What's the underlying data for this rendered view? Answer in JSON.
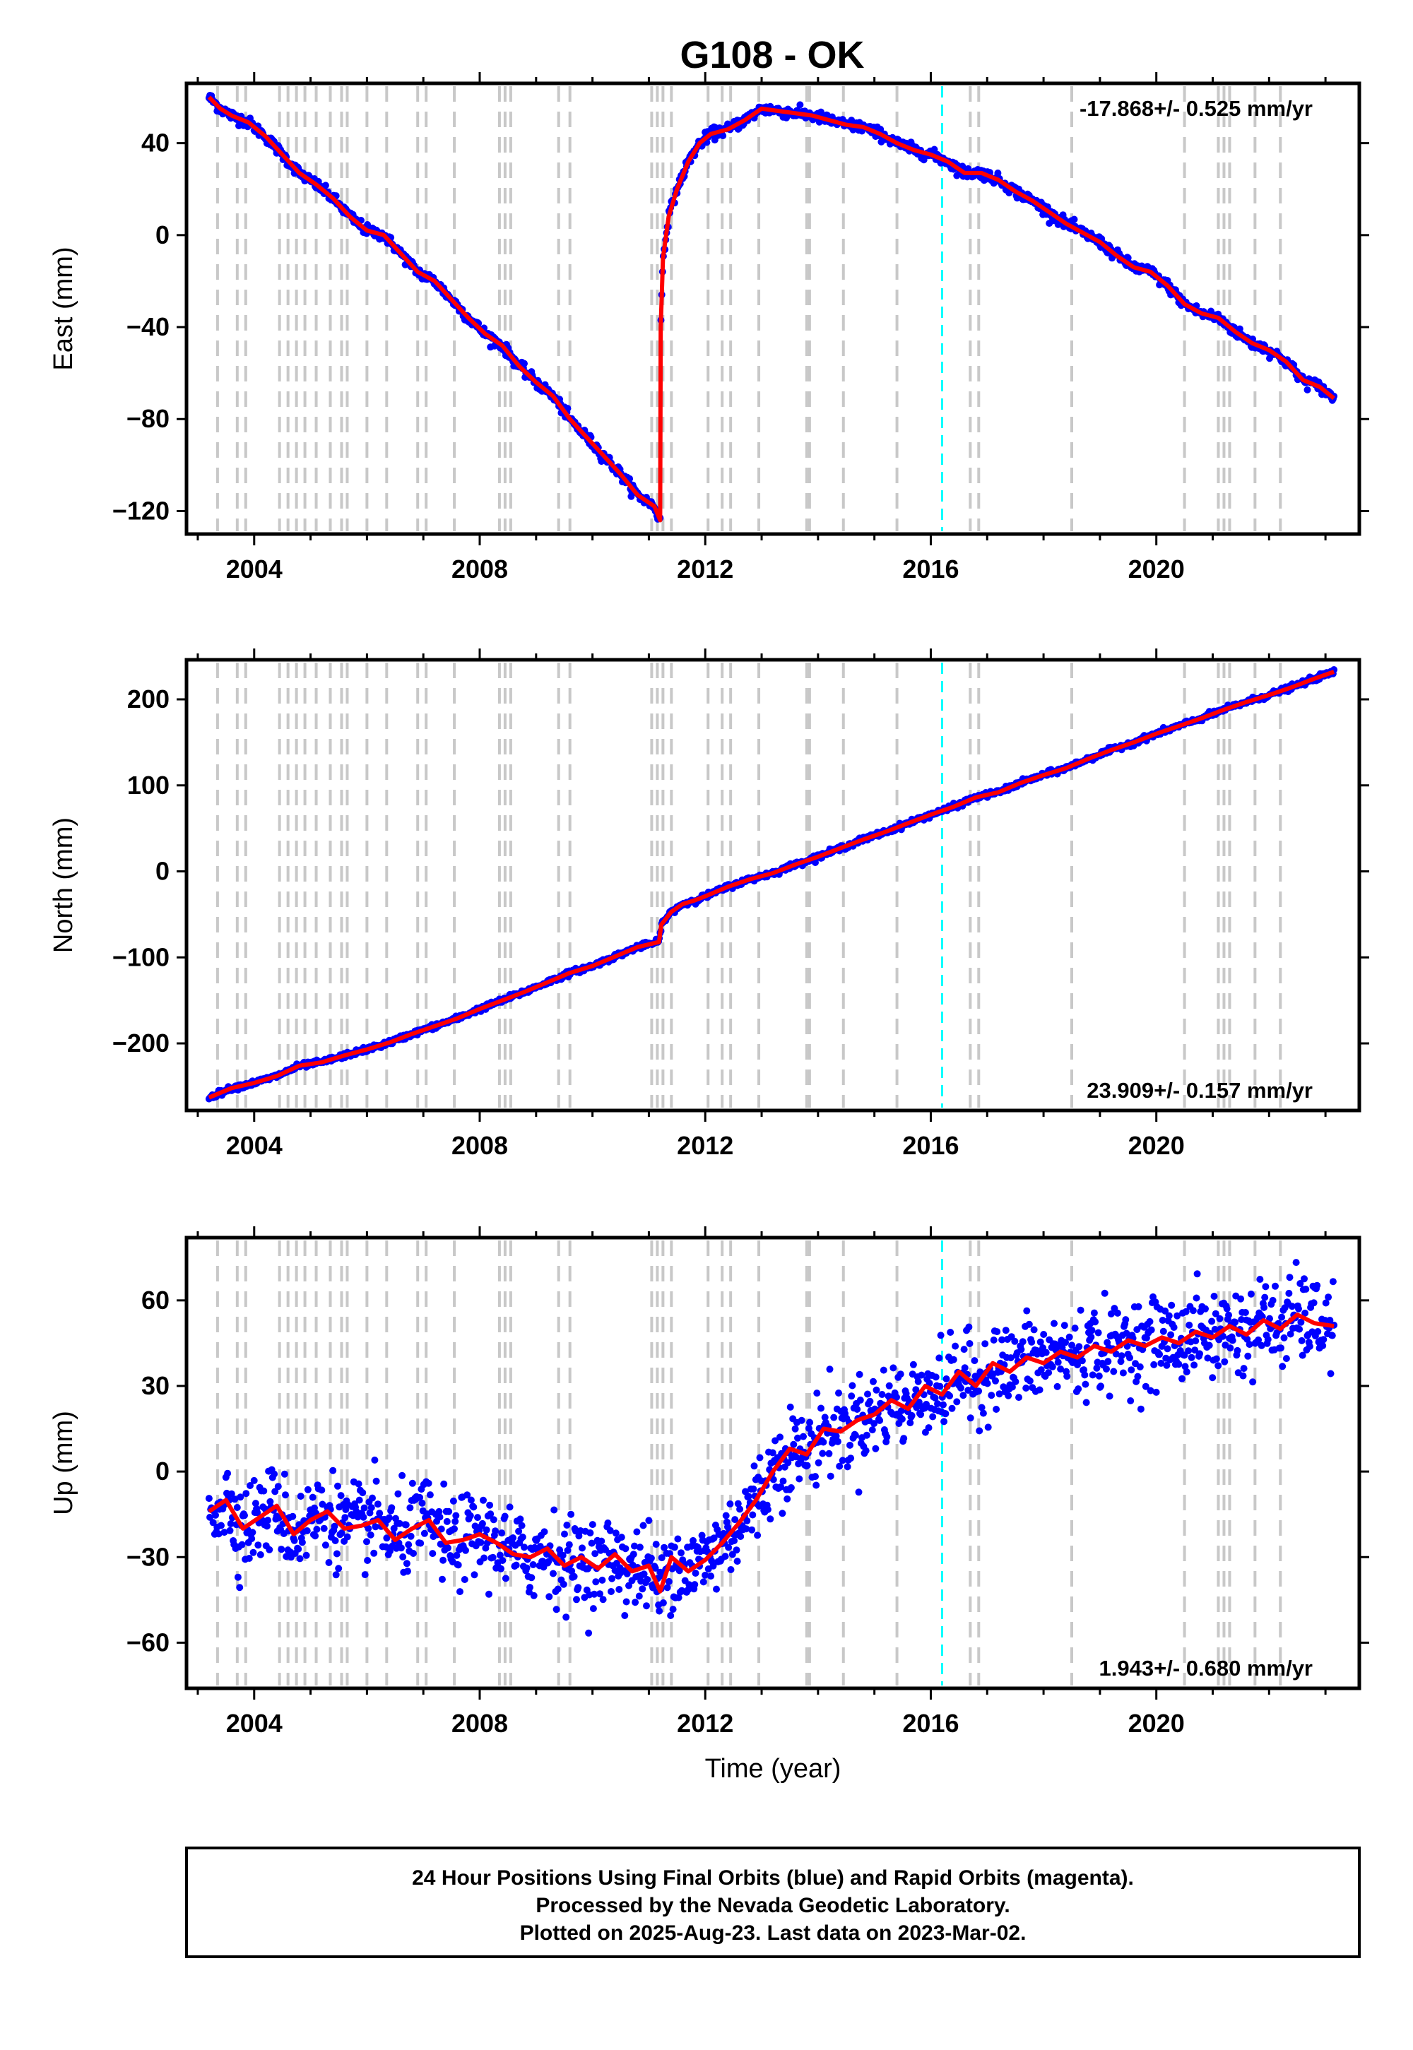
{
  "title": "G108 - OK",
  "footer": {
    "lines": [
      "24 Hour Positions Using Final Orbits (blue) and Rapid Orbits (magenta).",
      "Processed by the Nevada Geodetic Laboratory.",
      "Plotted on 2025-Aug-23. Last data on 2023-Mar-02."
    ]
  },
  "colors": {
    "points": "#0000ff",
    "fit": "#ff0000",
    "event_lines": "#c8c8c8",
    "highlight_line": "#00ffff"
  },
  "chart_data": [
    {
      "type": "scatter",
      "ylabel": "East (mm)",
      "xlabel": "",
      "rate_text": "-17.868+/- 0.525 mm/yr",
      "rate_position": "top-right",
      "xlim": [
        2002.8,
        2023.6
      ],
      "ylim": [
        -130,
        66
      ],
      "xticks": [
        2004,
        2008,
        2012,
        2016,
        2020
      ],
      "yticks": [
        40,
        0,
        -40,
        -80,
        -120
      ],
      "event_lines": [
        2003.35,
        2003.7,
        2003.85,
        2004.45,
        2004.6,
        2004.75,
        2004.9,
        2005.1,
        2005.35,
        2005.55,
        2005.65,
        2006.0,
        2006.35,
        2006.9,
        2007.05,
        2007.55,
        2008.35,
        2008.45,
        2008.55,
        2009.4,
        2009.6,
        2011.05,
        2011.15,
        2011.25,
        2011.4,
        2012.05,
        2012.3,
        2012.45,
        2012.95,
        2013.8,
        2013.85,
        2014.45,
        2015.4,
        2016.7,
        2016.85,
        2018.5,
        2020.5,
        2021.1,
        2021.2,
        2021.3,
        2021.75,
        2022.2
      ],
      "highlight_lines": [
        2016.2
      ],
      "series": [
        {
          "role": "trajectory",
          "x": [
            2003.2,
            2003.4,
            2003.6,
            2003.9,
            2004.2,
            2004.5,
            2004.8,
            2005.1,
            2005.4,
            2005.7,
            2006.0,
            2006.3,
            2006.6,
            2006.9,
            2007.2,
            2007.5,
            2007.8,
            2008.1,
            2008.4,
            2008.7,
            2009.0,
            2009.3,
            2009.6,
            2009.9,
            2010.2,
            2010.5,
            2010.8,
            2011.1,
            2011.2,
            2011.21,
            2011.25,
            2011.35,
            2011.5,
            2011.7,
            2011.9,
            2012.1,
            2012.4,
            2012.7,
            2013.0,
            2013.3,
            2013.6,
            2013.9,
            2014.2,
            2014.5,
            2014.8,
            2015.1,
            2015.4,
            2015.7,
            2016.0,
            2016.3,
            2016.6,
            2016.9,
            2017.2,
            2017.5,
            2017.8,
            2018.1,
            2018.4,
            2018.7,
            2019.0,
            2019.3,
            2019.6,
            2019.9,
            2020.2,
            2020.5,
            2020.8,
            2021.1,
            2021.4,
            2021.7,
            2022.0,
            2022.3,
            2022.6,
            2022.9,
            2023.15
          ],
          "y": [
            60,
            55,
            52,
            49,
            43,
            35,
            27,
            22,
            16,
            8,
            2,
            0,
            -8,
            -16,
            -20,
            -28,
            -36,
            -43,
            -48,
            -57,
            -64,
            -70,
            -80,
            -88,
            -96,
            -104,
            -113,
            -118,
            -124,
            -40,
            -10,
            8,
            20,
            32,
            40,
            44,
            46,
            50,
            55,
            54,
            53,
            52,
            50,
            48,
            47,
            44,
            40,
            37,
            35,
            32,
            27,
            27,
            24,
            19,
            15,
            10,
            5,
            1,
            -3,
            -9,
            -14,
            -16,
            -22,
            -30,
            -34,
            -36,
            -42,
            -47,
            -50,
            -55,
            -63,
            -66,
            -71
          ]
        }
      ]
    },
    {
      "type": "scatter",
      "ylabel": "North (mm)",
      "xlabel": "",
      "rate_text": "23.909+/- 0.157 mm/yr",
      "rate_position": "bottom-right",
      "xlim": [
        2002.8,
        2023.6
      ],
      "ylim": [
        -278,
        246
      ],
      "xticks": [
        2004,
        2008,
        2012,
        2016,
        2020
      ],
      "yticks": [
        200,
        100,
        0,
        -100,
        -200
      ],
      "event_lines": [
        2003.35,
        2003.7,
        2003.85,
        2004.45,
        2004.6,
        2004.75,
        2004.9,
        2005.1,
        2005.35,
        2005.55,
        2005.65,
        2006.0,
        2006.35,
        2006.9,
        2007.05,
        2007.55,
        2008.35,
        2008.45,
        2008.55,
        2009.4,
        2009.6,
        2011.05,
        2011.15,
        2011.25,
        2011.4,
        2012.05,
        2012.3,
        2012.45,
        2012.95,
        2013.8,
        2013.85,
        2014.45,
        2015.4,
        2016.7,
        2016.85,
        2018.5,
        2020.5,
        2021.1,
        2021.2,
        2021.3,
        2021.75,
        2022.2
      ],
      "highlight_lines": [
        2016.2
      ],
      "series": [
        {
          "role": "trajectory",
          "x": [
            2003.2,
            2003.6,
            2004.0,
            2004.4,
            2004.8,
            2005.2,
            2005.6,
            2006.0,
            2006.4,
            2006.8,
            2007.2,
            2007.6,
            2008.0,
            2008.4,
            2008.8,
            2009.2,
            2009.6,
            2010.0,
            2010.4,
            2010.8,
            2011.18,
            2011.22,
            2011.4,
            2011.6,
            2011.8,
            2012.0,
            2012.4,
            2012.8,
            2013.2,
            2013.6,
            2014.0,
            2014.4,
            2014.8,
            2015.2,
            2015.6,
            2016.0,
            2016.4,
            2016.8,
            2017.2,
            2017.6,
            2018.0,
            2018.4,
            2018.8,
            2019.2,
            2019.6,
            2020.0,
            2020.4,
            2020.8,
            2021.2,
            2021.6,
            2022.0,
            2022.4,
            2022.8,
            2023.15
          ],
          "y": [
            -263,
            -252,
            -246,
            -238,
            -226,
            -222,
            -214,
            -207,
            -199,
            -189,
            -180,
            -171,
            -160,
            -150,
            -140,
            -129,
            -118,
            -110,
            -99,
            -88,
            -82,
            -62,
            -47,
            -38,
            -34,
            -29,
            -18,
            -9,
            -2,
            8,
            17,
            27,
            37,
            46,
            56,
            66,
            75,
            86,
            92,
            103,
            112,
            120,
            131,
            141,
            150,
            160,
            169,
            178,
            188,
            197,
            205,
            214,
            224,
            232
          ]
        }
      ]
    },
    {
      "type": "scatter",
      "ylabel": "Up (mm)",
      "xlabel": "Time (year)",
      "rate_text": "1.943+/- 0.680 mm/yr",
      "rate_position": "bottom-right",
      "xlim": [
        2002.8,
        2023.6
      ],
      "ylim": [
        -76,
        82
      ],
      "xticks": [
        2004,
        2008,
        2012,
        2016,
        2020
      ],
      "yticks": [
        60,
        30,
        0,
        -30,
        -60
      ],
      "event_lines": [
        2003.35,
        2003.7,
        2003.85,
        2004.45,
        2004.6,
        2004.75,
        2004.9,
        2005.1,
        2005.35,
        2005.55,
        2005.65,
        2006.0,
        2006.35,
        2006.9,
        2007.05,
        2007.55,
        2008.35,
        2008.45,
        2008.55,
        2009.4,
        2009.6,
        2011.05,
        2011.15,
        2011.25,
        2011.4,
        2012.05,
        2012.3,
        2012.45,
        2012.95,
        2013.8,
        2013.85,
        2014.45,
        2015.4,
        2016.7,
        2016.85,
        2018.5,
        2020.5,
        2021.1,
        2021.2,
        2021.3,
        2021.75,
        2022.2
      ],
      "highlight_lines": [
        2016.2
      ],
      "series": [
        {
          "role": "trajectory",
          "x": [
            2003.2,
            2003.5,
            2003.8,
            2004.1,
            2004.4,
            2004.7,
            2005.0,
            2005.3,
            2005.6,
            2005.9,
            2006.2,
            2006.5,
            2006.8,
            2007.1,
            2007.4,
            2007.7,
            2008.0,
            2008.3,
            2008.6,
            2008.9,
            2009.2,
            2009.5,
            2009.8,
            2010.1,
            2010.4,
            2010.7,
            2011.0,
            2011.2,
            2011.4,
            2011.7,
            2012.0,
            2012.3,
            2012.6,
            2012.9,
            2013.2,
            2013.5,
            2013.8,
            2014.1,
            2014.4,
            2014.7,
            2015.0,
            2015.3,
            2015.6,
            2015.9,
            2016.2,
            2016.5,
            2016.8,
            2017.1,
            2017.4,
            2017.7,
            2018.0,
            2018.3,
            2018.6,
            2018.9,
            2019.2,
            2019.5,
            2019.8,
            2020.1,
            2020.4,
            2020.7,
            2021.0,
            2021.3,
            2021.6,
            2021.9,
            2022.2,
            2022.5,
            2022.8,
            2023.15
          ],
          "y": [
            -14,
            -10,
            -20,
            -16,
            -12,
            -22,
            -17,
            -14,
            -20,
            -19,
            -17,
            -24,
            -20,
            -17,
            -25,
            -24,
            -22,
            -25,
            -29,
            -30,
            -27,
            -33,
            -30,
            -34,
            -29,
            -35,
            -33,
            -42,
            -30,
            -35,
            -31,
            -25,
            -18,
            -10,
            0,
            8,
            6,
            15,
            14,
            18,
            20,
            25,
            22,
            30,
            27,
            35,
            30,
            38,
            35,
            40,
            38,
            42,
            40,
            44,
            42,
            46,
            44,
            47,
            45,
            49,
            47,
            51,
            48,
            53,
            50,
            55,
            52,
            51
          ]
        }
      ]
    }
  ]
}
